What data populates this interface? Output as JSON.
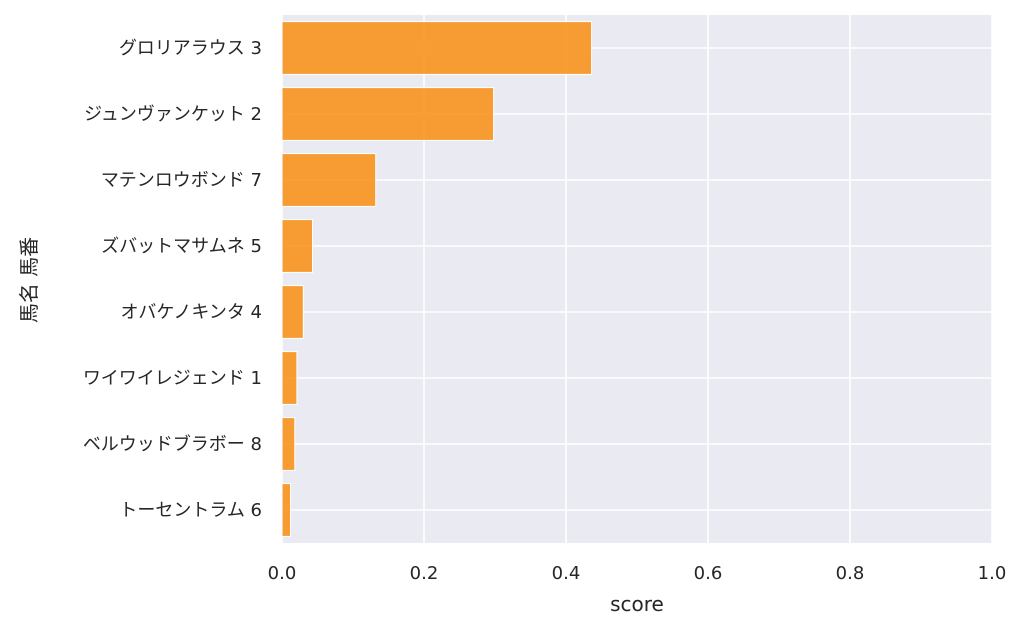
{
  "chart_data": {
    "type": "bar",
    "orientation": "horizontal",
    "categories": [
      "グロリアラウス 3",
      "ジュンヴァンケット 2",
      "マテンロウボンド 7",
      "ズバットマサムネ 5",
      "オバケノキンタ 4",
      "ワイワイレジェンド 1",
      "ベルウッドブラボー 8",
      "トーセントラム 6"
    ],
    "values": [
      0.436,
      0.298,
      0.132,
      0.043,
      0.03,
      0.021,
      0.018,
      0.012
    ],
    "xlabel": "score",
    "ylabel": "馬名 馬番",
    "xlim": [
      0.0,
      1.0
    ],
    "xticks": [
      "0.0",
      "0.2",
      "0.4",
      "0.6",
      "0.8",
      "1.0"
    ],
    "grid": true,
    "colors": {
      "bar": "#f7931e",
      "plot_background": "#eaeaf2",
      "grid": "#ffffff",
      "text": "#262626"
    }
  }
}
